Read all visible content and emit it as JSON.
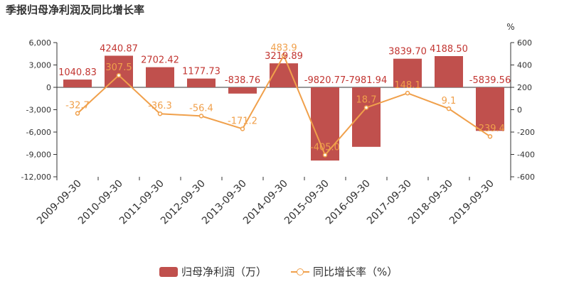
{
  "title": "季报归母净利润及同比增长率",
  "colors": {
    "bar": "#c0504d",
    "bar_label": "#c23531",
    "line": "#f0a04b"
  },
  "chart_data": {
    "type": "bar",
    "categories": [
      "2009-09-30",
      "2010-09-30",
      "2011-09-30",
      "2012-09-30",
      "2013-09-30",
      "2014-09-30",
      "2015-09-30",
      "2016-09-30",
      "2017-09-30",
      "2018-09-30",
      "2019-09-30"
    ],
    "series": [
      {
        "name": "归母净利润（万）",
        "type": "bar",
        "axis": "left",
        "values": [
          1040.83,
          4240.87,
          2702.42,
          1177.73,
          -838.76,
          3219.89,
          -9820.77,
          -7981.94,
          3839.7,
          4188.5,
          -5839.56
        ],
        "labels": [
          "1040.83",
          "4240.87",
          "2702.42",
          "1177.73",
          "-838.76",
          "3219.89",
          "-9820.77",
          "-7981.94",
          "3839.70",
          "4188.50",
          "-5839.56"
        ]
      },
      {
        "name": "同比增长率（%）",
        "type": "line",
        "axis": "right",
        "values": [
          -32.7,
          307.5,
          -36.3,
          -56.4,
          -171.2,
          483.9,
          -405.0,
          18.7,
          148.1,
          9.1,
          -239.4
        ],
        "labels": [
          "-32.7",
          "307.5",
          "-36.3",
          "-56.4",
          "-171.2",
          "483.9",
          "-405.0",
          "18.7",
          "148.1",
          "9.1",
          "-239.4"
        ]
      }
    ],
    "y_left": {
      "ylim": [
        -12000,
        6000
      ],
      "ticks": [
        "-12,000",
        "-9,000",
        "-6,000",
        "-3,000",
        "0",
        "3,000",
        "6,000"
      ]
    },
    "y_right": {
      "unit": "%",
      "ylim": [
        -600,
        600
      ],
      "ticks": [
        "-600",
        "-400",
        "-200",
        "0",
        "200",
        "400",
        "600"
      ]
    },
    "legend_position": "bottom",
    "grid": false
  },
  "legend": {
    "bar_label": "归母净利润（万）",
    "line_label": "同比增长率（%）"
  }
}
